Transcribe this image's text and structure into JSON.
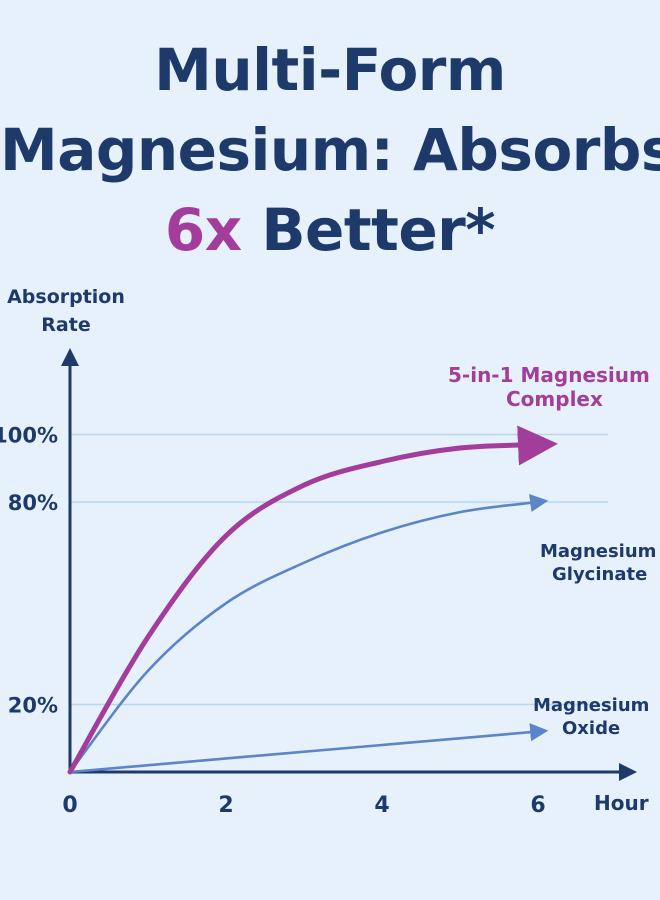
{
  "title": {
    "line1": "Multi-Form",
    "line2": "Magnesium: Absorbs",
    "line3_accent": "6x",
    "line3_rest": " Better*"
  },
  "colors": {
    "background": "#e6f1fb",
    "navy": "#1e3a6b",
    "accent": "#a33d9c",
    "blue_series": "#5b85c6",
    "gridline": "#bcd6ee"
  },
  "chart_data": {
    "type": "line",
    "ylabel_line1": "Absorption",
    "ylabel_line2": "Rate",
    "xlabel": "Hour",
    "x_ticks": [
      "0",
      "2",
      "4",
      "6"
    ],
    "y_ticks": [
      {
        "value": 20,
        "label": "20%"
      },
      {
        "value": 80,
        "label": "80%"
      },
      {
        "value": 100,
        "label": "100%"
      }
    ],
    "series": [
      {
        "name_line1": "5-in-1 Magnesium",
        "name_line2": "Complex",
        "color": "#a33d9c",
        "x": [
          0,
          1,
          2,
          3,
          4,
          5,
          6
        ],
        "y": [
          0,
          40,
          70,
          85,
          92,
          96,
          97
        ]
      },
      {
        "name_line1": "Magnesium",
        "name_line2": "Glycinate",
        "color": "#5b85c6",
        "x": [
          0,
          1,
          2,
          3,
          4,
          5,
          6
        ],
        "y": [
          0,
          30,
          50,
          62,
          71,
          77,
          80
        ]
      },
      {
        "name_line1": "Magnesium",
        "name_line2": "Oxide",
        "color": "#5b85c6",
        "x": [
          0,
          6
        ],
        "y": [
          0,
          12
        ]
      }
    ],
    "grid": "horizontal at y ticks",
    "legend": "labels at line ends (right)"
  }
}
